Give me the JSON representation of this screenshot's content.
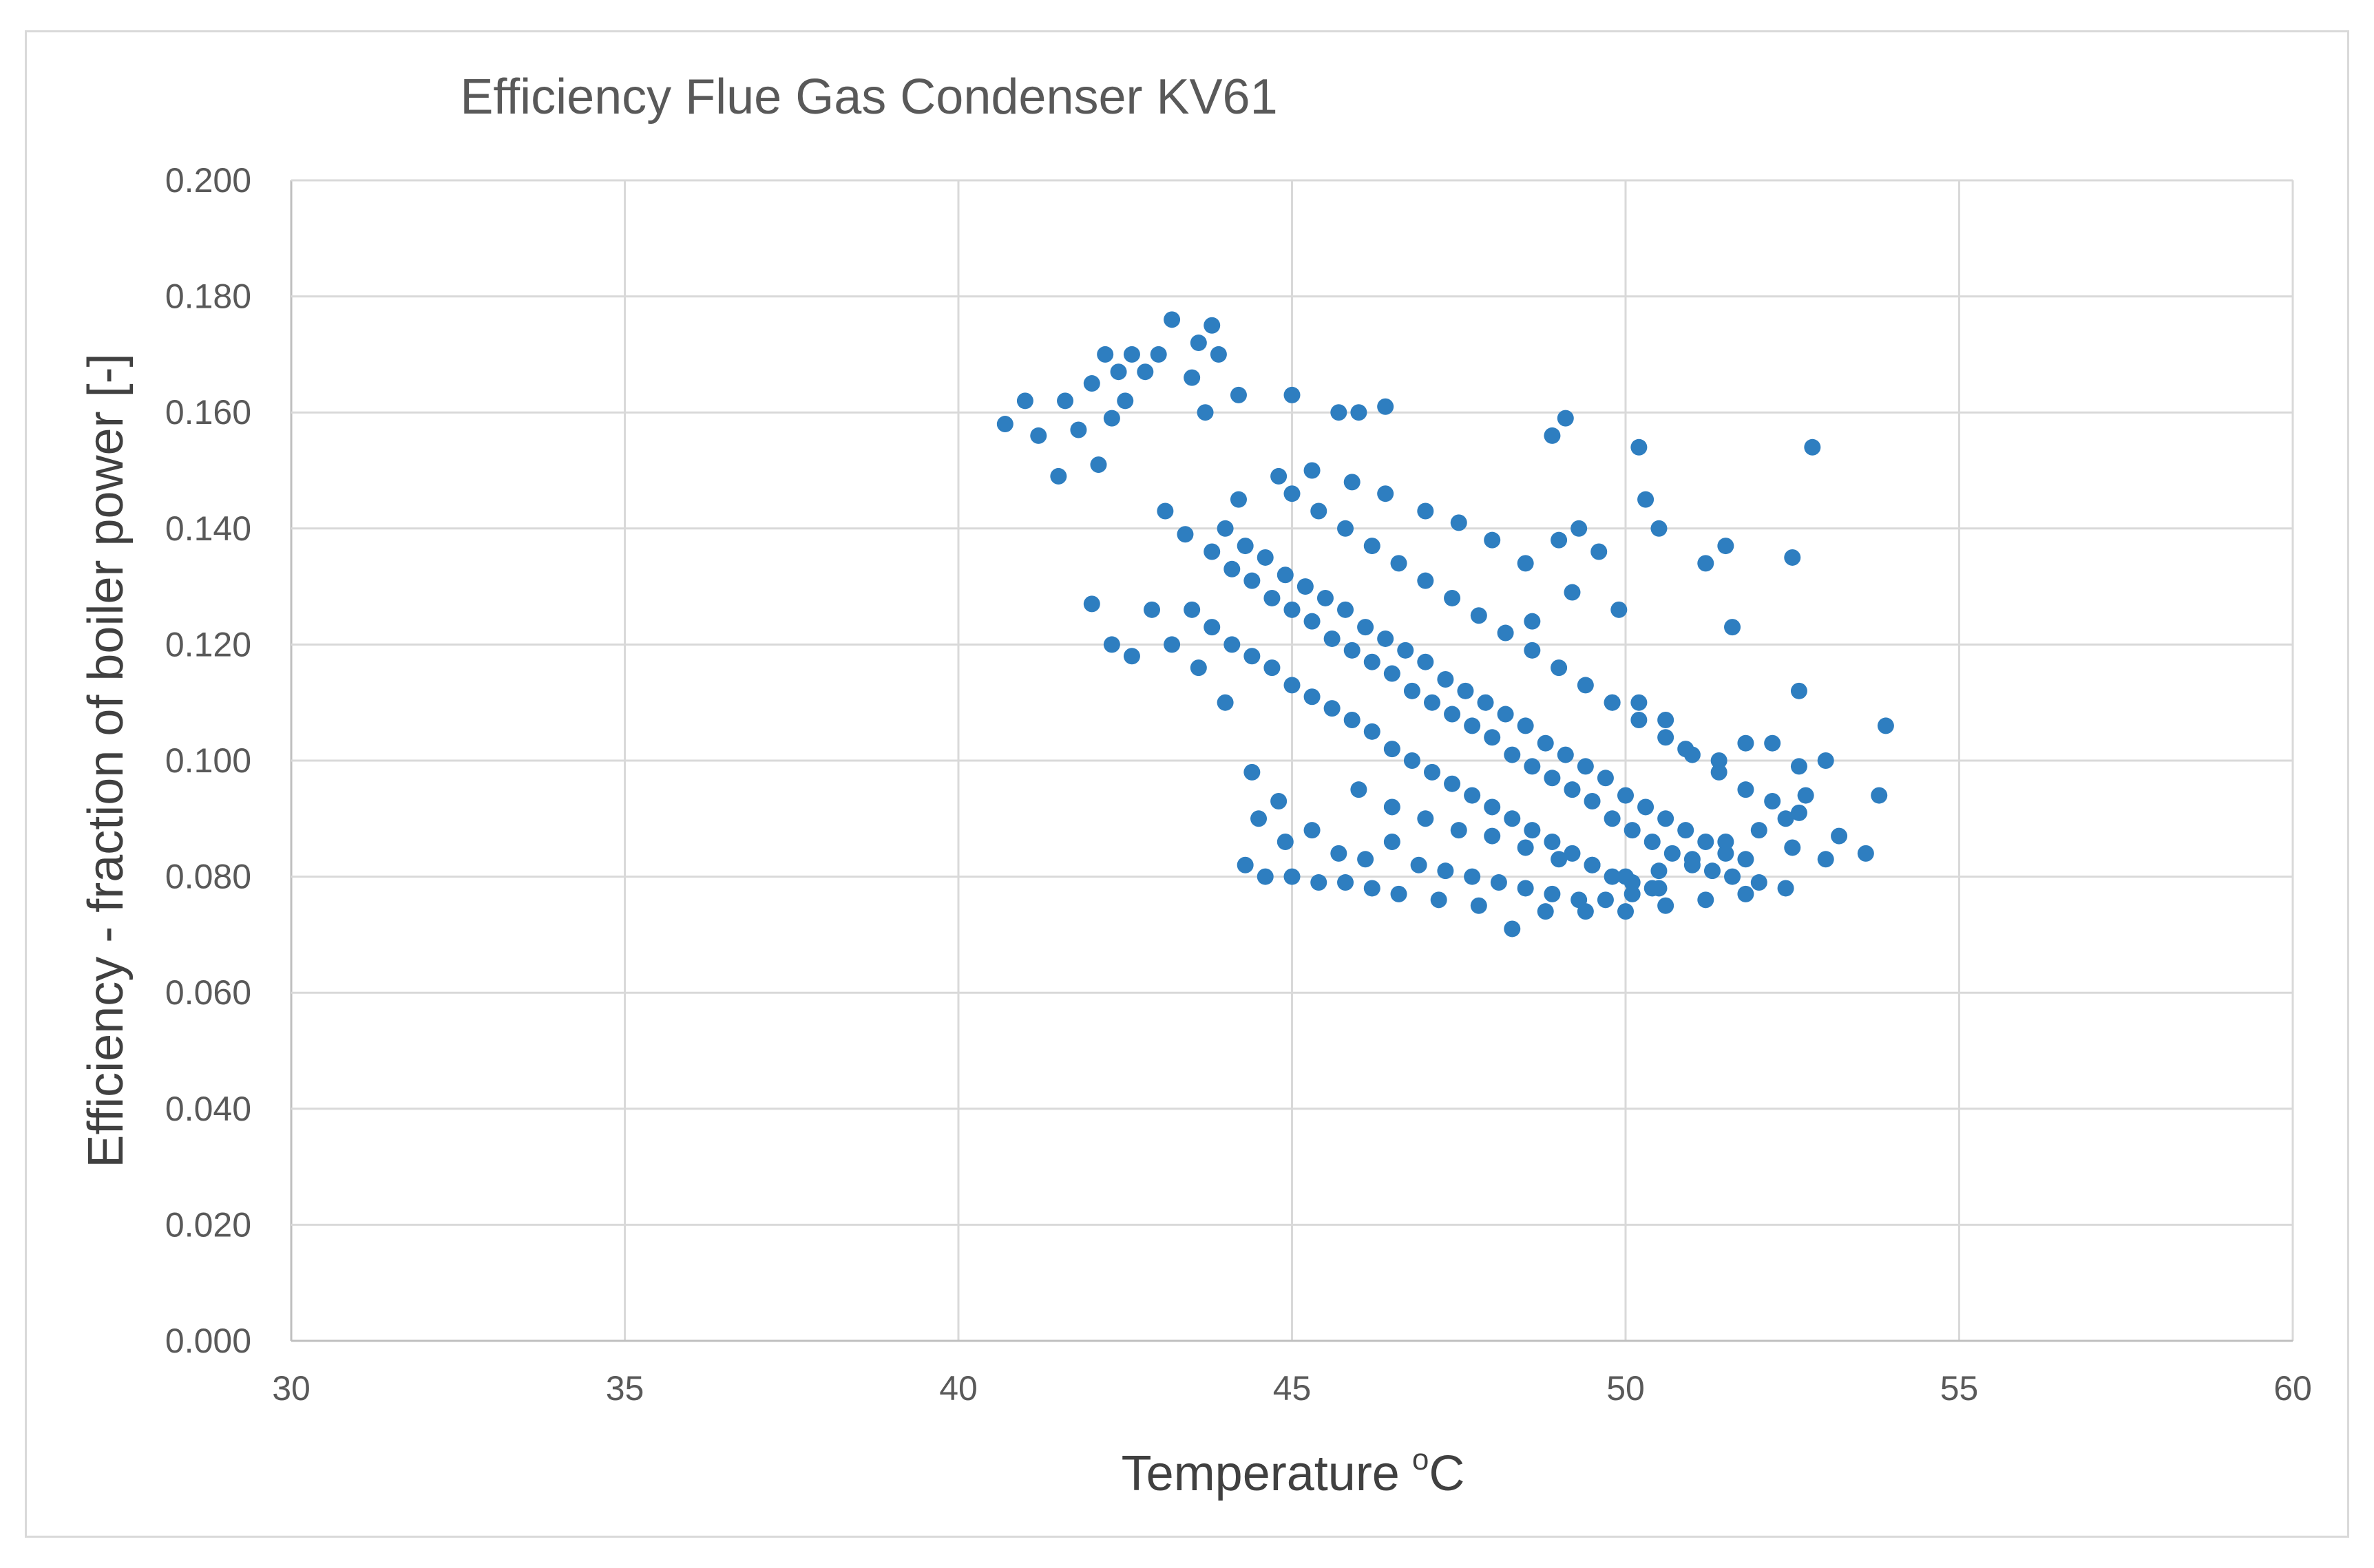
{
  "chart_data": {
    "type": "scatter",
    "title": "Efficiency Flue Gas Condenser KV61",
    "xlabel": "Temperature",
    "xlabel_unit_sup": "o",
    "xlabel_unit": "C",
    "ylabel": "Efficiency - fraction of boiler power [-]",
    "xlim": [
      30,
      60
    ],
    "ylim": [
      0,
      0.2
    ],
    "x_ticks": [
      "30",
      "35",
      "40",
      "45",
      "50",
      "55",
      "60"
    ],
    "y_ticks": [
      "0.000",
      "0.020",
      "0.040",
      "0.060",
      "0.080",
      "0.100",
      "0.120",
      "0.140",
      "0.160",
      "0.180",
      "0.200"
    ],
    "grid": true,
    "marker_color": "#2E7EC0",
    "series": [
      {
        "points": [
          [
            40.7,
            0.158
          ],
          [
            41.0,
            0.162
          ],
          [
            41.2,
            0.156
          ],
          [
            41.5,
            0.149
          ],
          [
            41.6,
            0.162
          ],
          [
            41.8,
            0.157
          ],
          [
            42.0,
            0.165
          ],
          [
            42.1,
            0.151
          ],
          [
            42.2,
            0.17
          ],
          [
            42.3,
            0.159
          ],
          [
            42.4,
            0.167
          ],
          [
            42.5,
            0.162
          ],
          [
            42.6,
            0.17
          ],
          [
            42.8,
            0.167
          ],
          [
            43.0,
            0.17
          ],
          [
            43.2,
            0.176
          ],
          [
            43.5,
            0.166
          ],
          [
            43.6,
            0.172
          ],
          [
            43.8,
            0.175
          ],
          [
            43.9,
            0.17
          ],
          [
            43.7,
            0.16
          ],
          [
            44.2,
            0.163
          ],
          [
            45.0,
            0.163
          ],
          [
            45.7,
            0.16
          ],
          [
            46.0,
            0.16
          ],
          [
            46.4,
            0.161
          ],
          [
            48.9,
            0.156
          ],
          [
            49.1,
            0.159
          ],
          [
            50.2,
            0.154
          ],
          [
            52.8,
            0.154
          ],
          [
            53.9,
            0.106
          ],
          [
            53.8,
            0.094
          ],
          [
            52.6,
            0.112
          ],
          [
            52.5,
            0.135
          ],
          [
            51.5,
            0.137
          ],
          [
            51.2,
            0.134
          ],
          [
            51.6,
            0.123
          ],
          [
            50.3,
            0.145
          ],
          [
            50.5,
            0.14
          ],
          [
            49.9,
            0.126
          ],
          [
            42.0,
            0.127
          ],
          [
            42.3,
            0.12
          ],
          [
            42.6,
            0.118
          ],
          [
            42.9,
            0.126
          ],
          [
            43.2,
            0.12
          ],
          [
            43.6,
            0.116
          ],
          [
            44.0,
            0.11
          ],
          [
            44.4,
            0.098
          ],
          [
            44.8,
            0.093
          ],
          [
            44.3,
            0.082
          ],
          [
            44.6,
            0.08
          ],
          [
            45.0,
            0.08
          ],
          [
            45.4,
            0.079
          ],
          [
            45.8,
            0.079
          ],
          [
            46.2,
            0.078
          ],
          [
            46.6,
            0.077
          ],
          [
            47.2,
            0.076
          ],
          [
            47.8,
            0.075
          ],
          [
            48.3,
            0.071
          ],
          [
            48.8,
            0.074
          ],
          [
            49.4,
            0.074
          ],
          [
            50.0,
            0.074
          ],
          [
            50.6,
            0.075
          ],
          [
            51.2,
            0.076
          ],
          [
            51.8,
            0.077
          ],
          [
            52.4,
            0.078
          ],
          [
            53.0,
            0.083
          ],
          [
            53.6,
            0.084
          ],
          [
            53.2,
            0.087
          ],
          [
            52.4,
            0.09
          ],
          [
            52.7,
            0.094
          ],
          [
            53.0,
            0.1
          ],
          [
            52.6,
            0.099
          ],
          [
            52.2,
            0.103
          ],
          [
            51.8,
            0.103
          ],
          [
            51.4,
            0.1
          ],
          [
            50.9,
            0.102
          ],
          [
            50.6,
            0.107
          ],
          [
            50.2,
            0.11
          ],
          [
            49.8,
            0.11
          ],
          [
            43.1,
            0.143
          ],
          [
            43.4,
            0.139
          ],
          [
            43.8,
            0.136
          ],
          [
            44.1,
            0.133
          ],
          [
            44.4,
            0.131
          ],
          [
            44.7,
            0.128
          ],
          [
            45.0,
            0.126
          ],
          [
            45.3,
            0.124
          ],
          [
            45.6,
            0.121
          ],
          [
            45.9,
            0.119
          ],
          [
            46.2,
            0.117
          ],
          [
            46.5,
            0.115
          ],
          [
            46.8,
            0.112
          ],
          [
            47.1,
            0.11
          ],
          [
            47.4,
            0.108
          ],
          [
            47.7,
            0.106
          ],
          [
            48.0,
            0.104
          ],
          [
            48.3,
            0.101
          ],
          [
            48.6,
            0.099
          ],
          [
            48.9,
            0.097
          ],
          [
            49.2,
            0.095
          ],
          [
            49.5,
            0.093
          ],
          [
            49.8,
            0.09
          ],
          [
            50.1,
            0.088
          ],
          [
            50.4,
            0.086
          ],
          [
            50.7,
            0.084
          ],
          [
            51.0,
            0.082
          ],
          [
            51.3,
            0.081
          ],
          [
            51.6,
            0.08
          ],
          [
            52.0,
            0.079
          ],
          [
            44.0,
            0.14
          ],
          [
            44.3,
            0.137
          ],
          [
            44.6,
            0.135
          ],
          [
            44.9,
            0.132
          ],
          [
            45.2,
            0.13
          ],
          [
            45.5,
            0.128
          ],
          [
            45.8,
            0.126
          ],
          [
            46.1,
            0.123
          ],
          [
            46.4,
            0.121
          ],
          [
            46.7,
            0.119
          ],
          [
            47.0,
            0.117
          ],
          [
            47.3,
            0.114
          ],
          [
            47.6,
            0.112
          ],
          [
            47.9,
            0.11
          ],
          [
            48.2,
            0.108
          ],
          [
            48.5,
            0.106
          ],
          [
            48.8,
            0.103
          ],
          [
            49.1,
            0.101
          ],
          [
            49.4,
            0.099
          ],
          [
            49.7,
            0.097
          ],
          [
            50.0,
            0.094
          ],
          [
            50.3,
            0.092
          ],
          [
            50.6,
            0.09
          ],
          [
            50.9,
            0.088
          ],
          [
            51.2,
            0.086
          ],
          [
            51.5,
            0.084
          ],
          [
            51.8,
            0.083
          ],
          [
            43.5,
            0.126
          ],
          [
            43.8,
            0.123
          ],
          [
            44.1,
            0.12
          ],
          [
            44.4,
            0.118
          ],
          [
            44.7,
            0.116
          ],
          [
            45.0,
            0.113
          ],
          [
            45.3,
            0.111
          ],
          [
            45.6,
            0.109
          ],
          [
            45.9,
            0.107
          ],
          [
            46.2,
            0.105
          ],
          [
            46.5,
            0.102
          ],
          [
            46.8,
            0.1
          ],
          [
            47.1,
            0.098
          ],
          [
            47.4,
            0.096
          ],
          [
            47.7,
            0.094
          ],
          [
            48.0,
            0.092
          ],
          [
            48.3,
            0.09
          ],
          [
            48.6,
            0.088
          ],
          [
            48.9,
            0.086
          ],
          [
            49.2,
            0.084
          ],
          [
            49.5,
            0.082
          ],
          [
            49.8,
            0.08
          ],
          [
            50.1,
            0.079
          ],
          [
            50.4,
            0.078
          ],
          [
            45.0,
            0.146
          ],
          [
            45.4,
            0.143
          ],
          [
            45.8,
            0.14
          ],
          [
            46.2,
            0.137
          ],
          [
            46.6,
            0.134
          ],
          [
            47.0,
            0.131
          ],
          [
            47.4,
            0.128
          ],
          [
            47.8,
            0.125
          ],
          [
            48.2,
            0.122
          ],
          [
            48.6,
            0.119
          ],
          [
            49.0,
            0.116
          ],
          [
            49.4,
            0.113
          ],
          [
            49.8,
            0.11
          ],
          [
            50.2,
            0.107
          ],
          [
            50.6,
            0.104
          ],
          [
            51.0,
            0.101
          ],
          [
            51.4,
            0.098
          ],
          [
            51.8,
            0.095
          ],
          [
            52.2,
            0.093
          ],
          [
            52.6,
            0.091
          ],
          [
            44.2,
            0.145
          ],
          [
            44.8,
            0.149
          ],
          [
            45.3,
            0.15
          ],
          [
            45.9,
            0.148
          ],
          [
            46.4,
            0.146
          ],
          [
            47.0,
            0.143
          ],
          [
            47.5,
            0.141
          ],
          [
            48.0,
            0.138
          ],
          [
            48.5,
            0.134
          ],
          [
            49.0,
            0.138
          ],
          [
            49.3,
            0.14
          ],
          [
            49.6,
            0.136
          ],
          [
            49.2,
            0.129
          ],
          [
            48.6,
            0.124
          ],
          [
            44.5,
            0.09
          ],
          [
            44.9,
            0.086
          ],
          [
            45.3,
            0.088
          ],
          [
            45.7,
            0.084
          ],
          [
            46.1,
            0.083
          ],
          [
            46.5,
            0.086
          ],
          [
            46.9,
            0.082
          ],
          [
            47.3,
            0.081
          ],
          [
            47.7,
            0.08
          ],
          [
            48.1,
            0.079
          ],
          [
            48.5,
            0.078
          ],
          [
            48.9,
            0.077
          ],
          [
            49.3,
            0.076
          ],
          [
            49.7,
            0.076
          ],
          [
            50.1,
            0.077
          ],
          [
            50.5,
            0.078
          ],
          [
            46.0,
            0.095
          ],
          [
            46.5,
            0.092
          ],
          [
            47.0,
            0.09
          ],
          [
            47.5,
            0.088
          ],
          [
            48.0,
            0.087
          ],
          [
            48.5,
            0.085
          ],
          [
            49.0,
            0.083
          ],
          [
            49.5,
            0.082
          ],
          [
            50.0,
            0.08
          ],
          [
            50.5,
            0.081
          ],
          [
            51.0,
            0.083
          ],
          [
            51.5,
            0.086
          ],
          [
            52.0,
            0.088
          ],
          [
            52.5,
            0.085
          ]
        ]
      }
    ]
  }
}
